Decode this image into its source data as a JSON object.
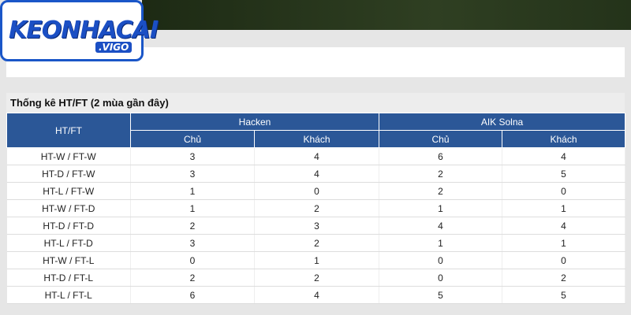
{
  "logo": {
    "brand": "KEONHACAI",
    "suffix": ".VIGO"
  },
  "section": {
    "title": "Thống kê HT/FT (2 mùa gần đây)"
  },
  "table": {
    "corner": "HT/FT",
    "teams": [
      {
        "name": "Hacken",
        "columns": [
          "Chủ",
          "Khách"
        ]
      },
      {
        "name": "AIK Solna",
        "columns": [
          "Chủ",
          "Khách"
        ]
      }
    ],
    "rows": [
      {
        "label": "HT-W / FT-W",
        "values": [
          3,
          4,
          6,
          4
        ]
      },
      {
        "label": "HT-D / FT-W",
        "values": [
          3,
          4,
          2,
          5
        ]
      },
      {
        "label": "HT-L / FT-W",
        "values": [
          1,
          0,
          2,
          0
        ]
      },
      {
        "label": "HT-W / FT-D",
        "values": [
          1,
          2,
          1,
          1
        ]
      },
      {
        "label": "HT-D / FT-D",
        "values": [
          2,
          3,
          4,
          4
        ]
      },
      {
        "label": "HT-L / FT-D",
        "values": [
          3,
          2,
          1,
          1
        ]
      },
      {
        "label": "HT-W / FT-L",
        "values": [
          0,
          1,
          0,
          0
        ]
      },
      {
        "label": "HT-D / FT-L",
        "values": [
          2,
          2,
          0,
          2
        ]
      },
      {
        "label": "HT-L / FT-L",
        "values": [
          6,
          4,
          5,
          5
        ]
      }
    ]
  }
}
